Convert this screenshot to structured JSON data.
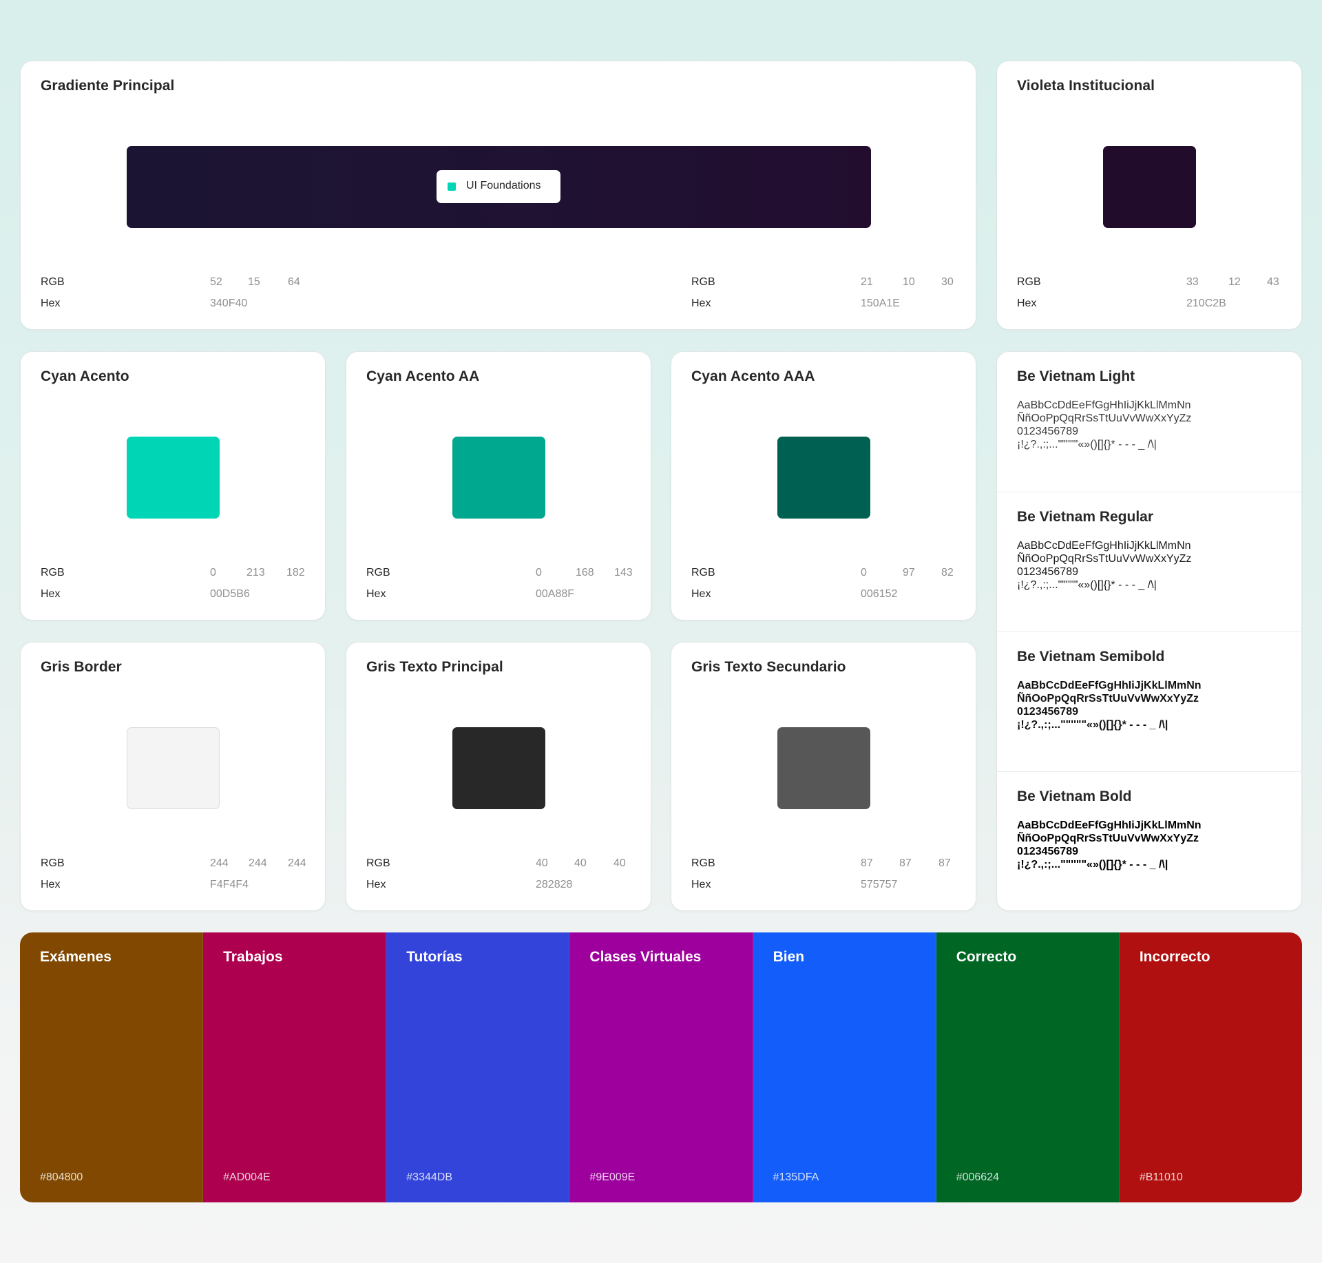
{
  "gradient_card": {
    "title": "Gradiente Principal",
    "chip_label": "UI Foundations",
    "start": {
      "rgb_label": "RGB",
      "r": "52",
      "g": "15",
      "b": "64",
      "hex_label": "Hex",
      "hex": "340F40"
    },
    "end": {
      "rgb_label": "RGB",
      "r": "21",
      "g": "10",
      "b": "30",
      "hex_label": "Hex",
      "hex": "150A1E"
    }
  },
  "colors": {
    "violeta": {
      "title": "Violeta Institucional",
      "color": "#210C2B",
      "rgb_label": "RGB",
      "r": "33",
      "g": "12",
      "b": "43",
      "hex_label": "Hex",
      "hex": "210C2B"
    },
    "cyan": {
      "title": "Cyan Acento",
      "color": "#00D5B6",
      "rgb_label": "RGB",
      "r": "0",
      "g": "213",
      "b": "182",
      "hex_label": "Hex",
      "hex": "00D5B6"
    },
    "cyan_aa": {
      "title": "Cyan Acento AA",
      "color": "#00A88F",
      "rgb_label": "RGB",
      "r": "0",
      "g": "168",
      "b": "143",
      "hex_label": "Hex",
      "hex": "00A88F"
    },
    "cyan_aaa": {
      "title": "Cyan Acento AAA",
      "color": "#006152",
      "rgb_label": "RGB",
      "r": "0",
      "g": "97",
      "b": "82",
      "hex_label": "Hex",
      "hex": "006152"
    },
    "gris_border": {
      "title": "Gris Border",
      "color": "#F4F4F4",
      "rgb_label": "RGB",
      "r": "244",
      "g": "244",
      "b": "244",
      "hex_label": "Hex",
      "hex": "F4F4F4"
    },
    "gris_texto": {
      "title": "Gris Texto Principal",
      "color": "#282828",
      "rgb_label": "RGB",
      "r": "40",
      "g": "40",
      "b": "40",
      "hex_label": "Hex",
      "hex": "282828"
    },
    "gris_sec": {
      "title": "Gris Texto Secundario",
      "color": "#575757",
      "rgb_label": "RGB",
      "r": "87",
      "g": "87",
      "b": "87",
      "hex_label": "Hex",
      "hex": "575757"
    }
  },
  "typography": [
    {
      "title": "Be Vietnam Light",
      "weight": "300",
      "sample": "AaBbCcDdEeFfGgHhIiJjKkLlMmNn\nÑñOoPpQqRrSsTtUuVvWwXxYyZz\n0123456789\n¡!¿?.,:;...\"\"''\"\"«»()[]{}* - - - _ /\\|"
    },
    {
      "title": "Be Vietnam Regular",
      "weight": "400",
      "sample": "AaBbCcDdEeFfGgHhIiJjKkLlMmNn\nÑñOoPpQqRrSsTtUuVvWwXxYyZz\n0123456789\n¡!¿?.,:;...\"\"''\"\"«»()[]{}* - - - _ /\\|"
    },
    {
      "title": "Be Vietnam Semibold",
      "weight": "600",
      "sample": "AaBbCcDdEeFfGgHhIiJjKkLlMmNn\nÑñOoPpQqRrSsTtUuVvWwXxYyZz\n0123456789\n¡!¿?.,:;...\"\"''\"\"«»()[]{}* - - - _ /\\|"
    },
    {
      "title": "Be Vietnam Bold",
      "weight": "700",
      "sample": "AaBbCcDdEeFfGgHhIiJjKkLlMmNn\nÑñOoPpQqRrSsTtUuVvWwXxYyZz\n0123456789\n¡!¿?.,:;...\"\"''\"\"«»()[]{}* - - - _ /\\|"
    }
  ],
  "categories": [
    {
      "name": "Exámenes",
      "hex": "#804800",
      "color": "#804800"
    },
    {
      "name": "Trabajos",
      "hex": "#AD004E",
      "color": "#AD004E"
    },
    {
      "name": "Tutorías",
      "hex": "#3344DB",
      "color": "#3344DB"
    },
    {
      "name": "Clases Virtuales",
      "hex": "#9E009E",
      "color": "#9E009E"
    },
    {
      "name": "Bien",
      "hex": "#135DFA",
      "color": "#135DFA"
    },
    {
      "name": "Correcto",
      "hex": "#006624",
      "color": "#006624"
    },
    {
      "name": "Incorrecto",
      "hex": "#B11010",
      "color": "#B11010"
    }
  ]
}
